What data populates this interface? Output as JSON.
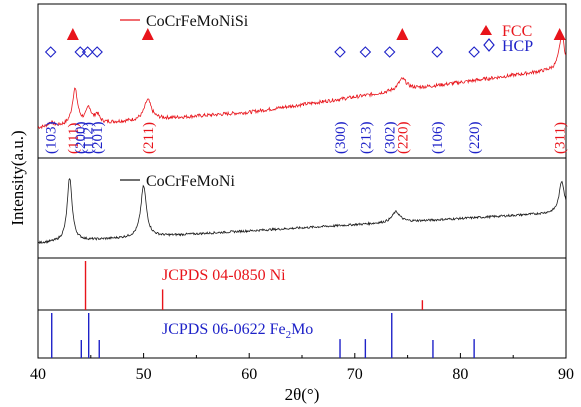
{
  "chart_data": {
    "type": "line",
    "xlabel": "2θ(°)",
    "ylabel": "Intensity(a.u.)",
    "xlim": [
      40,
      90
    ],
    "xticks": [
      40,
      50,
      60,
      70,
      80,
      90
    ],
    "grid": false,
    "colors": {
      "red": "#e8141b",
      "black": "#1a1a1a",
      "blue": "#1e22c8",
      "axis": "#000000"
    },
    "legend": {
      "fcc": {
        "symbol": "filled-triangle",
        "label": "FCC",
        "color": "#e8141b"
      },
      "hcp": {
        "symbol": "open-diamond",
        "label": "HCP",
        "color": "#1e22c8"
      }
    },
    "panels": [
      {
        "kind": "pattern",
        "name": "CoCrFeMoNiSi",
        "color": "#e8141b",
        "baseline": [
          [
            40,
            0.17
          ],
          [
            60,
            0.28
          ],
          [
            75,
            0.44
          ],
          [
            90,
            0.59
          ]
        ],
        "peaks": [
          {
            "x": 41.2,
            "h": 0.03,
            "w": 0.3
          },
          {
            "x": 43.5,
            "h": 0.25,
            "w": 0.3
          },
          {
            "x": 44.8,
            "h": 0.11,
            "w": 0.3
          },
          {
            "x": 45.6,
            "h": 0.06,
            "w": 0.25
          },
          {
            "x": 50.4,
            "h": 0.14,
            "w": 0.4
          },
          {
            "x": 74.5,
            "h": 0.08,
            "w": 0.5
          },
          {
            "x": 89.6,
            "h": 0.24,
            "w": 0.3
          }
        ],
        "markers": [
          {
            "x": 41.2,
            "label": "(103)",
            "phase": "hcp"
          },
          {
            "x": 43.3,
            "label": "(111)",
            "phase": "fcc"
          },
          {
            "x": 44.0,
            "label": "(200)",
            "phase": "hcp"
          },
          {
            "x": 44.7,
            "label": "(112)",
            "phase": "hcp"
          },
          {
            "x": 45.6,
            "label": "(201)",
            "phase": "hcp"
          },
          {
            "x": 50.4,
            "label": "(211)",
            "phase": "fcc"
          },
          {
            "x": 68.6,
            "label": "(300)",
            "phase": "hcp"
          },
          {
            "x": 71.0,
            "label": "(213)",
            "phase": "hcp"
          },
          {
            "x": 73.3,
            "label": "(302)",
            "phase": "hcp"
          },
          {
            "x": 74.5,
            "label": "(220)",
            "phase": "fcc"
          },
          {
            "x": 77.8,
            "label": "(106)",
            "phase": "hcp"
          },
          {
            "x": 81.3,
            "label": "(220)",
            "phase": "hcp"
          },
          {
            "x": 89.4,
            "label": "(311)",
            "phase": "fcc"
          }
        ]
      },
      {
        "kind": "pattern",
        "name": "CoCrFeMoNi",
        "color": "#1a1a1a",
        "baseline": [
          [
            40,
            0.1
          ],
          [
            60,
            0.24
          ],
          [
            90,
            0.45
          ]
        ],
        "peaks": [
          {
            "x": 43.0,
            "h": 0.72,
            "w": 0.28
          },
          {
            "x": 50.0,
            "h": 0.58,
            "w": 0.32
          },
          {
            "x": 73.9,
            "h": 0.12,
            "w": 0.45
          },
          {
            "x": 89.6,
            "h": 0.36,
            "w": 0.3
          }
        ]
      },
      {
        "kind": "reference",
        "name": "JCPDS 04-0850 Ni",
        "color": "#e8141b",
        "lines": [
          [
            44.5,
            1.0
          ],
          [
            51.8,
            0.42
          ],
          [
            76.4,
            0.2
          ]
        ]
      },
      {
        "kind": "reference",
        "name_main": "JCPDS 06-0622 Fe",
        "name_sub": "2",
        "name_tail": "Mo",
        "color": "#1e22c8",
        "lines": [
          [
            41.3,
            1.0
          ],
          [
            44.1,
            0.4
          ],
          [
            44.8,
            1.0
          ],
          [
            45.8,
            0.4
          ],
          [
            68.6,
            0.42
          ],
          [
            71.0,
            0.42
          ],
          [
            73.5,
            1.0
          ],
          [
            77.4,
            0.4
          ],
          [
            81.3,
            0.42
          ]
        ]
      }
    ]
  }
}
